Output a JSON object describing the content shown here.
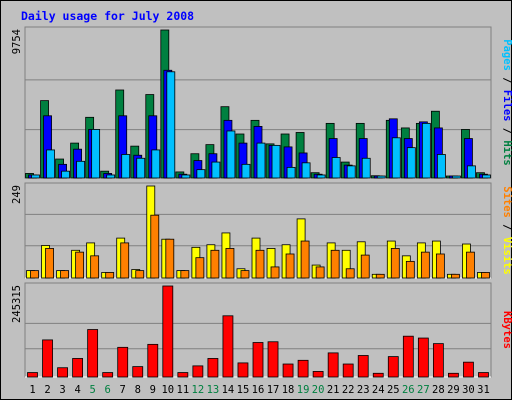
{
  "chart_data": {
    "type": "bar",
    "title": "Daily usage for July 2008",
    "categories": [
      "1",
      "2",
      "3",
      "4",
      "5",
      "6",
      "7",
      "8",
      "9",
      "10",
      "11",
      "12",
      "13",
      "14",
      "15",
      "16",
      "17",
      "18",
      "19",
      "20",
      "21",
      "22",
      "23",
      "24",
      "25",
      "26",
      "27",
      "28",
      "29",
      "30",
      "31"
    ],
    "weekend_days": [
      "5",
      "6",
      "12",
      "13",
      "19",
      "20",
      "26",
      "27"
    ],
    "panels": [
      {
        "id": "top",
        "max_label": "9754",
        "ymax": 9754,
        "right_labels": [
          "Pages",
          "Files",
          "Hits"
        ],
        "series": [
          {
            "name": "Hits",
            "color": "#008040",
            "values": [
              300,
              5100,
              1250,
              2300,
              4000,
              450,
              5800,
              2100,
              5500,
              9754,
              400,
              1600,
              2200,
              4700,
              2900,
              3800,
              2250,
              2900,
              3000,
              350,
              3600,
              1050,
              3600,
              150,
              3800,
              3300,
              3600,
              4400,
              100,
              3200,
              350
            ]
          },
          {
            "name": "Files",
            "color": "#0000ff",
            "values": [
              200,
              4100,
              900,
              1900,
              3200,
              300,
              4100,
              1500,
              4100,
              7100,
              250,
              1150,
              1600,
              3800,
              2300,
              3400,
              2150,
              2050,
              1650,
              250,
              2600,
              850,
              2600,
              100,
              3900,
              2600,
              3700,
              3300,
              100,
              2600,
              250
            ]
          },
          {
            "name": "Pages",
            "color": "#00c0ff",
            "values": [
              200,
              1850,
              450,
              1100,
              3200,
              200,
              1550,
              1300,
              1850,
              7000,
              200,
              550,
              1050,
              3100,
              900,
              2300,
              2150,
              700,
              1000,
              200,
              1350,
              800,
              1300,
              100,
              2650,
              2000,
              3600,
              1550,
              100,
              800,
              200
            ]
          }
        ]
      },
      {
        "id": "middle",
        "max_label": "249",
        "ymax": 249,
        "right_labels": [
          "Sites",
          "Visits"
        ],
        "series": [
          {
            "name": "Visits",
            "color": "#ffff00",
            "values": [
              20,
              88,
              20,
              75,
              95,
              15,
              108,
              23,
              249,
              105,
              20,
              83,
              90,
              122,
              25,
              108,
              80,
              90,
              160,
              35,
              95,
              75,
              98,
              10,
              100,
              60,
              95,
              100,
              10,
              92,
              15
            ]
          },
          {
            "name": "Sites",
            "color": "#ff8000",
            "values": [
              20,
              80,
              20,
              70,
              60,
              15,
              95,
              20,
              170,
              105,
              20,
              55,
              75,
              80,
              20,
              75,
              30,
              65,
              100,
              30,
              75,
              25,
              62,
              10,
              80,
              45,
              70,
              65,
              10,
              70,
              15
            ]
          }
        ]
      },
      {
        "id": "bottom",
        "max_label": "245315",
        "ymax": 245315,
        "right_labels": [
          "KBytes"
        ],
        "series": [
          {
            "name": "KBytes",
            "color": "#ff0000",
            "values": [
              12000,
              100000,
              25000,
              50000,
              128000,
              12000,
              80000,
              28000,
              88000,
              245315,
              12000,
              30000,
              50000,
              165000,
              38000,
              93000,
              95000,
              35000,
              45000,
              15000,
              65000,
              35000,
              58000,
              10000,
              55000,
              110000,
              105000,
              90000,
              10000,
              40000,
              12000
            ]
          }
        ]
      }
    ],
    "colors": {
      "title": "#0000ff",
      "axis_label": "#000000",
      "weekday_tick": "#000000",
      "weekend_tick": "#008040",
      "background": "#c0c0c0",
      "plot_line": "#808080"
    },
    "grid": true
  }
}
